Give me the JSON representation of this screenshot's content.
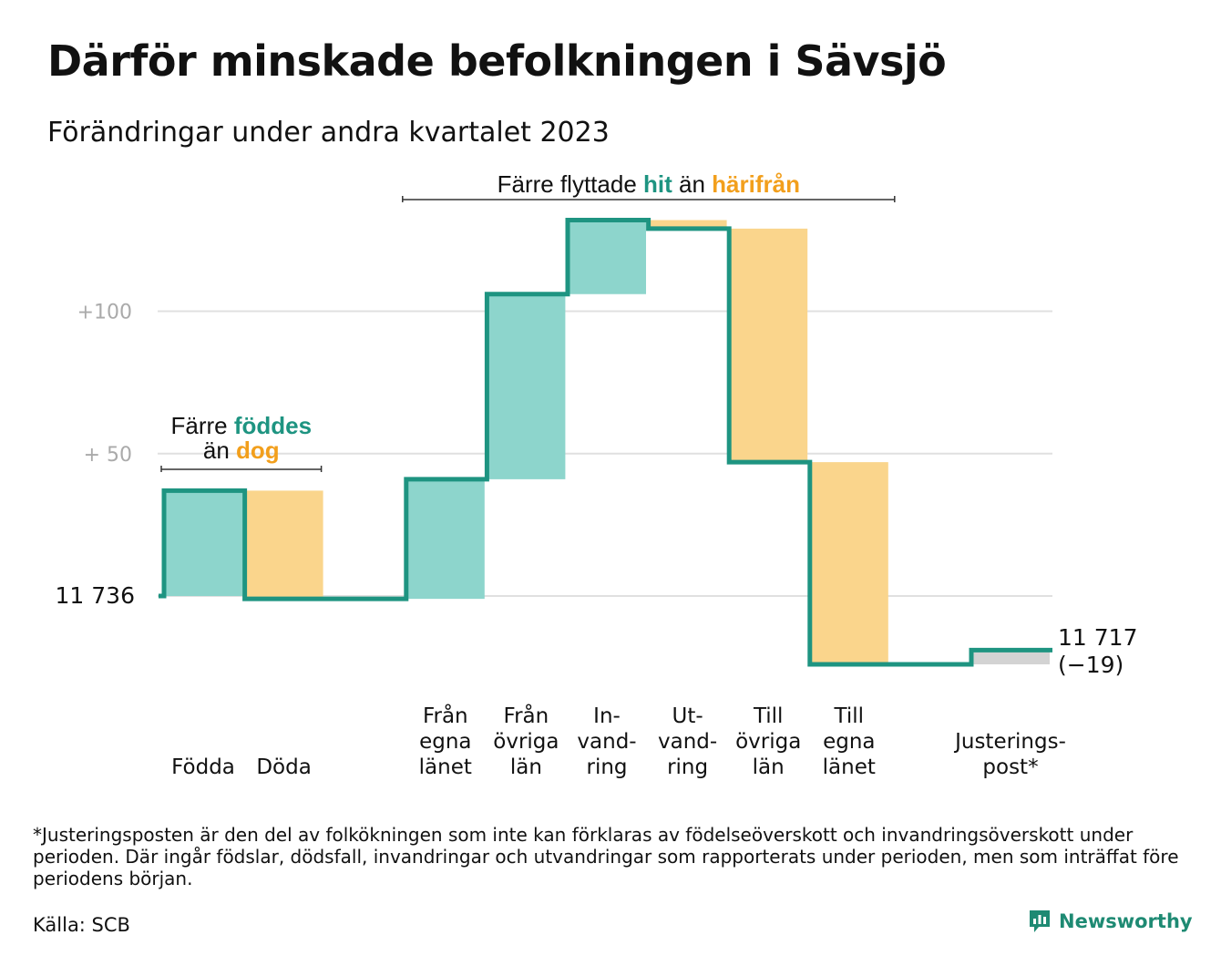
{
  "title": "Därför minskade befolkningen i Sävsjö",
  "subtitle": "Förändringar under andra kvartalet 2023",
  "footnote": "*Justeringsposten är den del av folkökningen som inte kan förklaras av födelseöverskott och invandringsöverskott under perioden. Där ingår födslar, dödsfall, invandringar och utvandringar som rapporterats under perioden, men som inträffat före periodens början.",
  "source": "Källa: SCB",
  "brand": "Newsworthy",
  "colors": {
    "positive": "#8dd5cc",
    "negative": "#fad58c",
    "adjustment": "#d3d3d3",
    "line": "#1e9481",
    "accent_teal": "#1e9481",
    "accent_orange": "#f29f1c",
    "grid": "#e0e0e0",
    "axis_text": "#aaaaaa"
  },
  "chart_data": {
    "type": "waterfall",
    "start_value": 11736,
    "start_label": "11  736",
    "end_value": 11717,
    "end_label": "11 717",
    "end_change": "(−19)",
    "y_ticks": [
      {
        "value": 11786,
        "label": "+  50"
      },
      {
        "value": 11836,
        "label": "+100"
      }
    ],
    "steps": [
      {
        "label": [
          "Födda"
        ],
        "value": 37,
        "kind": "positive"
      },
      {
        "label": [
          "Döda"
        ],
        "value": -38,
        "kind": "negative"
      },
      {
        "label": [],
        "value": 0,
        "kind": "none"
      },
      {
        "label": [
          "Från",
          "egna",
          "länet"
        ],
        "value": 42,
        "kind": "positive"
      },
      {
        "label": [
          "Från",
          "övriga",
          "län"
        ],
        "value": 65,
        "kind": "positive"
      },
      {
        "label": [
          "In-",
          "vand-",
          "ring"
        ],
        "value": 26,
        "kind": "positive"
      },
      {
        "label": [
          "Ut-",
          "vand-",
          "ring"
        ],
        "value": -3,
        "kind": "negative"
      },
      {
        "label": [
          "Till",
          "övriga",
          "län"
        ],
        "value": -82,
        "kind": "negative"
      },
      {
        "label": [
          "Till",
          "egna",
          "länet"
        ],
        "value": -71,
        "kind": "negative"
      },
      {
        "label": [],
        "value": 0,
        "kind": "none"
      },
      {
        "label": [
          "Justerings-",
          "post*"
        ],
        "value": 5,
        "kind": "adjustment"
      }
    ],
    "annotations": [
      {
        "lines": [
          [
            {
              "text": "Färre ",
              "color": "text"
            },
            {
              "text": "föddes",
              "color": "teal"
            }
          ],
          [
            {
              "text": "än ",
              "color": "text"
            },
            {
              "text": "dog",
              "color": "orange"
            }
          ]
        ]
      },
      {
        "lines": [
          [
            {
              "text": "Färre flyttade ",
              "color": "text"
            },
            {
              "text": "hit",
              "color": "teal"
            },
            {
              "text": " än ",
              "color": "text"
            },
            {
              "text": "härifrån",
              "color": "orange"
            }
          ]
        ]
      }
    ]
  }
}
